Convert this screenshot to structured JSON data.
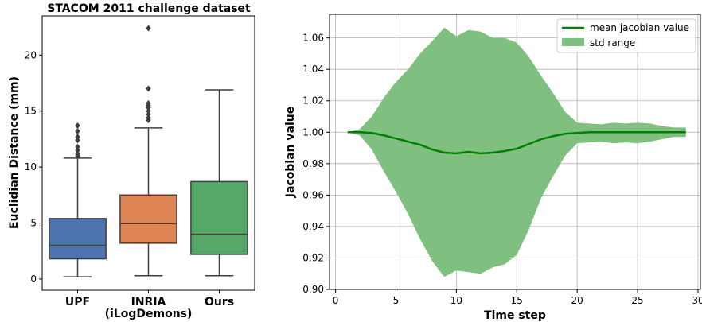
{
  "chart_data": [
    {
      "type": "box",
      "title": "STACOM 2011 challenge dataset",
      "xlabel": "",
      "ylabel": "Euclidian Distance (mm)",
      "ylim": [
        -1.0,
        23.5
      ],
      "yticks": [
        0,
        5,
        10,
        15,
        20
      ],
      "categories": [
        "UPF",
        "INRIA\n(iLogDemons)",
        "Ours"
      ],
      "category_lines": [
        [
          "UPF"
        ],
        [
          "INRIA",
          "(iLogDemons)"
        ],
        [
          "Ours"
        ]
      ],
      "boxes": [
        {
          "label": "UPF",
          "color": "#4c72b0",
          "whisker_low": 0.2,
          "q1": 1.8,
          "median": 3.0,
          "q3": 5.4,
          "whisker_high": 10.8,
          "outliers": [
            11.0,
            11.2,
            11.5,
            11.8,
            12.4,
            12.7,
            13.2,
            13.7
          ]
        },
        {
          "label": "INRIA (iLogDemons)",
          "color": "#dd8452",
          "whisker_low": 0.3,
          "q1": 3.2,
          "median": 4.95,
          "q3": 7.5,
          "whisker_high": 13.5,
          "outliers": [
            14.2,
            14.4,
            14.7,
            15.0,
            15.3,
            15.5,
            15.7,
            17.0,
            22.4
          ]
        },
        {
          "label": "Ours",
          "color": "#55a868",
          "whisker_low": 0.3,
          "q1": 2.2,
          "median": 4.0,
          "q3": 8.7,
          "whisker_high": 16.9,
          "outliers": []
        }
      ]
    },
    {
      "type": "line",
      "title": "",
      "xlabel": "Time step",
      "ylabel": "Jacobian value",
      "xlim": [
        -0.5,
        30.2
      ],
      "ylim": [
        0.9,
        1.075
      ],
      "xticks": [
        0,
        5,
        10,
        15,
        20,
        25,
        30
      ],
      "yticks": [
        0.9,
        0.92,
        0.94,
        0.96,
        0.98,
        1.0,
        1.02,
        1.04,
        1.06
      ],
      "ytick_labels": [
        "0.90",
        "0.92",
        "0.94",
        "0.96",
        "0.98",
        "1.00",
        "1.02",
        "1.04",
        "1.06"
      ],
      "grid": true,
      "legend_position": "top-right",
      "x": [
        1,
        2,
        3,
        4,
        5,
        6,
        7,
        8,
        9,
        10,
        11,
        12,
        13,
        14,
        15,
        16,
        17,
        18,
        19,
        20,
        21,
        22,
        23,
        24,
        25,
        26,
        27,
        28,
        29
      ],
      "series": [
        {
          "name": "mean jacobian value",
          "color": "#008000",
          "values": [
            1.0,
            1.0,
            0.9995,
            0.998,
            0.996,
            0.994,
            0.992,
            0.989,
            0.987,
            0.9865,
            0.9875,
            0.9865,
            0.987,
            0.988,
            0.9895,
            0.9925,
            0.9955,
            0.9975,
            0.999,
            0.9995,
            1.0,
            1.0,
            1.0,
            1.0,
            1.0,
            1.0,
            1.0,
            1.0,
            1.0
          ]
        }
      ],
      "band": {
        "name": "std range",
        "color": "#7fbf7f",
        "upper": [
          1.0,
          1.002,
          1.01,
          1.022,
          1.032,
          1.04,
          1.05,
          1.058,
          1.0665,
          1.061,
          1.065,
          1.064,
          1.06,
          1.06,
          1.057,
          1.048,
          1.036,
          1.025,
          1.013,
          1.006,
          1.0055,
          1.005,
          1.006,
          1.0055,
          1.006,
          1.0055,
          1.004,
          1.003,
          1.003
        ],
        "lower": [
          1.0,
          0.998,
          0.989,
          0.975,
          0.962,
          0.948,
          0.932,
          0.918,
          0.908,
          0.912,
          0.911,
          0.91,
          0.914,
          0.916,
          0.922,
          0.938,
          0.958,
          0.972,
          0.985,
          0.993,
          0.9935,
          0.994,
          0.993,
          0.9935,
          0.993,
          0.994,
          0.9955,
          0.997,
          0.997
        ]
      }
    }
  ]
}
